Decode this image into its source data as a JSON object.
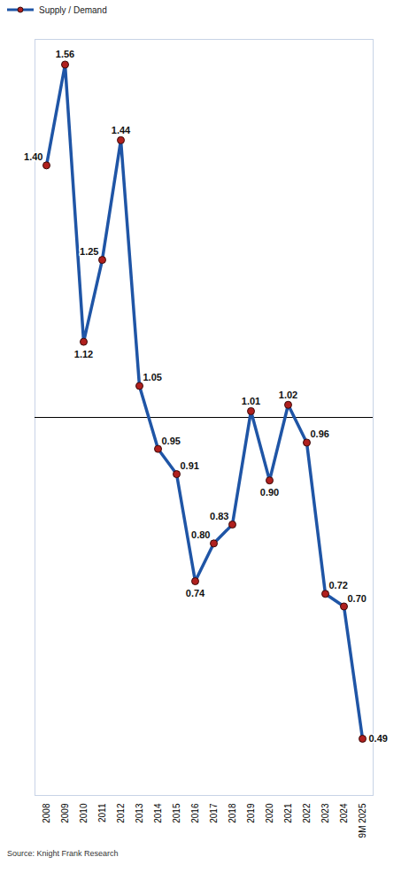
{
  "chart_data": {
    "type": "line",
    "categories": [
      "2008",
      "2009",
      "2010",
      "2011",
      "2012",
      "2013",
      "2014",
      "2015",
      "2016",
      "2017",
      "2018",
      "2019",
      "2020",
      "2021",
      "2022",
      "2023",
      "2024",
      "9M 2025"
    ],
    "series": [
      {
        "name": "Supply / Demand",
        "color": "#1f55a6",
        "marker": "circle",
        "values": [
          1.4,
          1.56,
          1.12,
          1.25,
          1.44,
          1.05,
          0.95,
          0.91,
          0.74,
          0.8,
          0.83,
          1.01,
          0.9,
          1.02,
          0.96,
          0.72,
          0.7,
          0.49
        ],
        "value_labels": [
          "1.40",
          "1.56",
          "1.12",
          "1.25",
          "1.44",
          "1.05",
          "0.95",
          "0.91",
          "0.74",
          "0.80",
          "0.83",
          "1.01",
          "0.90",
          "1.02",
          "0.96",
          "0.72",
          "0.70",
          "0.49"
        ]
      }
    ],
    "ylim": [
      0.4,
      1.6
    ],
    "reference_line": 1,
    "tick_labels": "x",
    "data_labels": true,
    "grid": false,
    "legend": "top-left",
    "source": "Source: Knight Frank Research"
  }
}
